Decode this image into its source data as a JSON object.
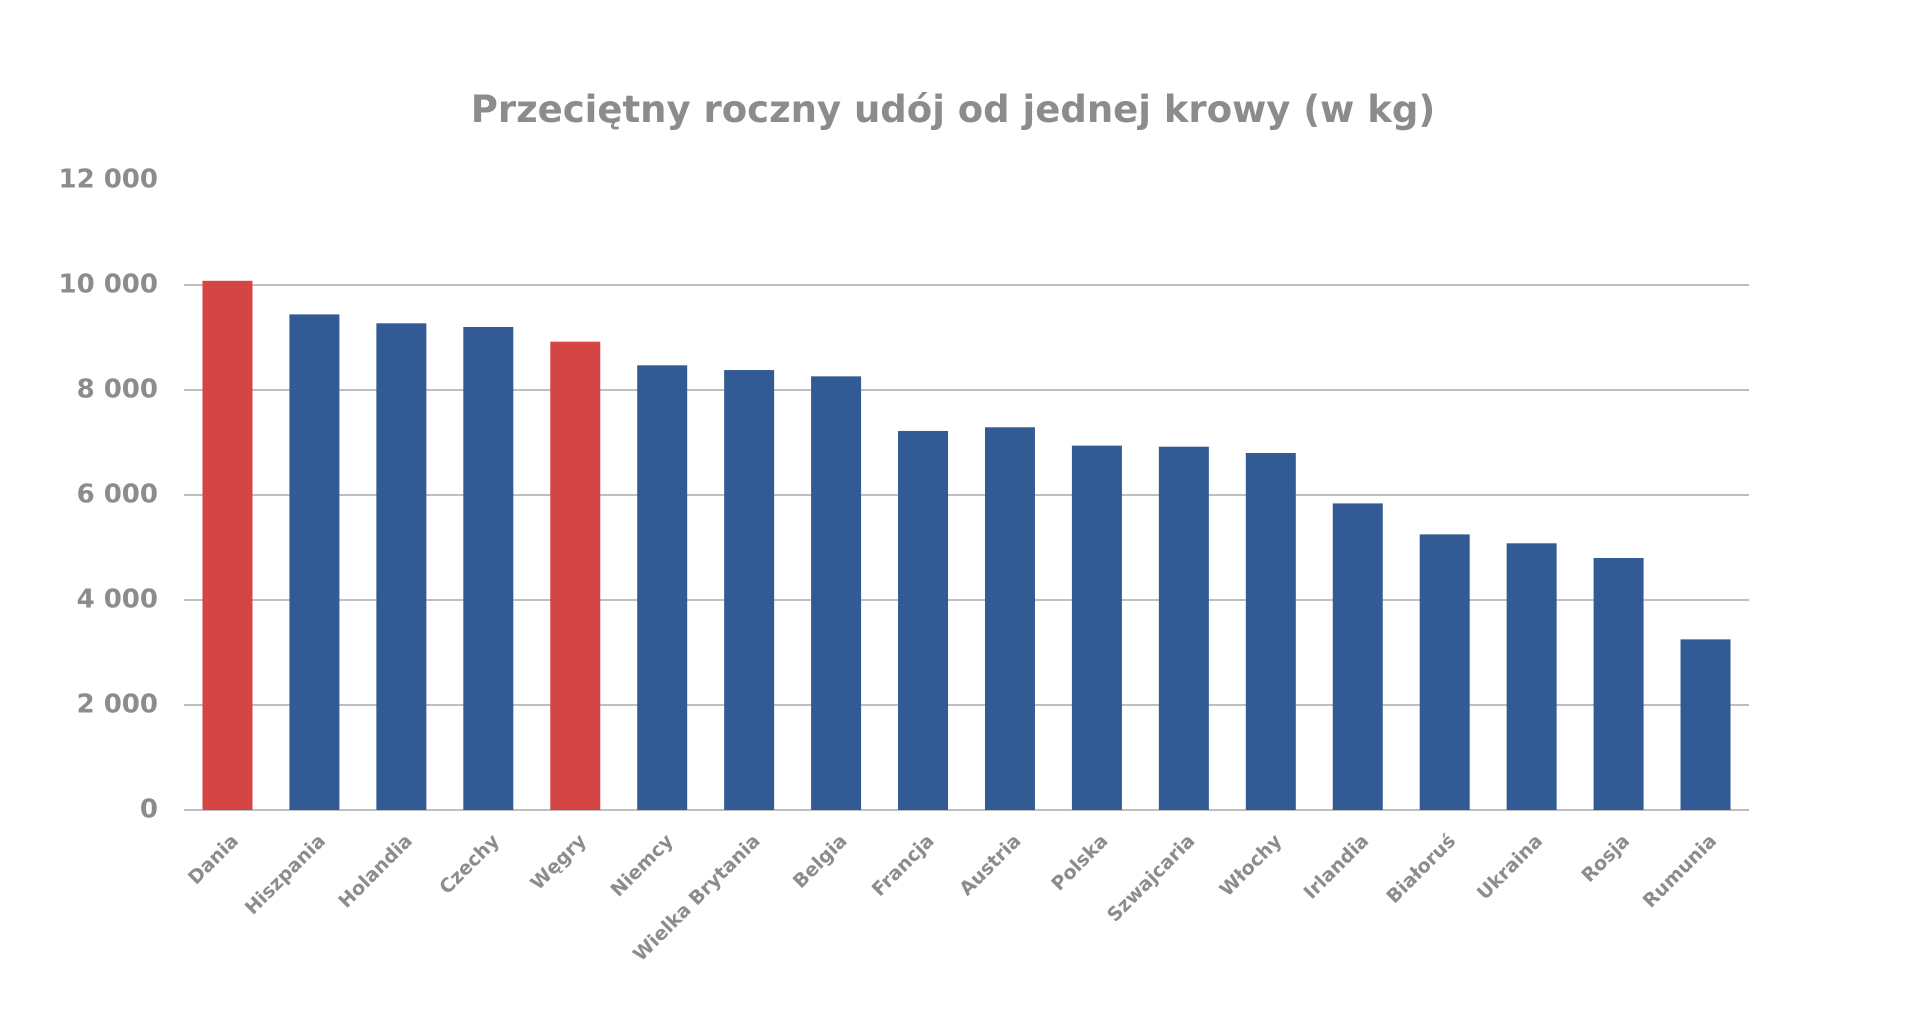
{
  "chart_data": {
    "type": "bar",
    "title": "Przeciętny roczny udój od jednej krowy (w kg)",
    "categories": [
      "Dania",
      "Hiszpania",
      "Holandia",
      "Czechy",
      "Węgry",
      "Niemcy",
      "Wielka Brytania",
      "Belgia",
      "Francja",
      "Austria",
      "Polska",
      "Szwajcaria",
      "Włochy",
      "Irlandia",
      "Białoruś",
      "Ukraina",
      "Rosja",
      "Rumunia"
    ],
    "values": [
      10080,
      9440,
      9270,
      9200,
      8920,
      8470,
      8380,
      8260,
      7220,
      7290,
      6940,
      6920,
      6800,
      5840,
      5250,
      5080,
      4800,
      3250
    ],
    "colors": [
      "#d64545",
      "#325a94",
      "#325a94",
      "#325a94",
      "#d64545",
      "#325a94",
      "#325a94",
      "#325a94",
      "#325a94",
      "#325a94",
      "#325a94",
      "#325a94",
      "#325a94",
      "#325a94",
      "#325a94",
      "#325a94",
      "#325a94",
      "#325a94"
    ],
    "ylim": [
      0,
      12000
    ],
    "yticks": [
      {
        "value": 0,
        "label": "0"
      },
      {
        "value": 2000,
        "label": "2 000"
      },
      {
        "value": 4000,
        "label": "4 000"
      },
      {
        "value": 6000,
        "label": "6 000"
      },
      {
        "value": 8000,
        "label": "8 000"
      },
      {
        "value": 10000,
        "label": "10 000"
      },
      {
        "value": 12000,
        "label": "12 000"
      }
    ],
    "grid": true
  }
}
